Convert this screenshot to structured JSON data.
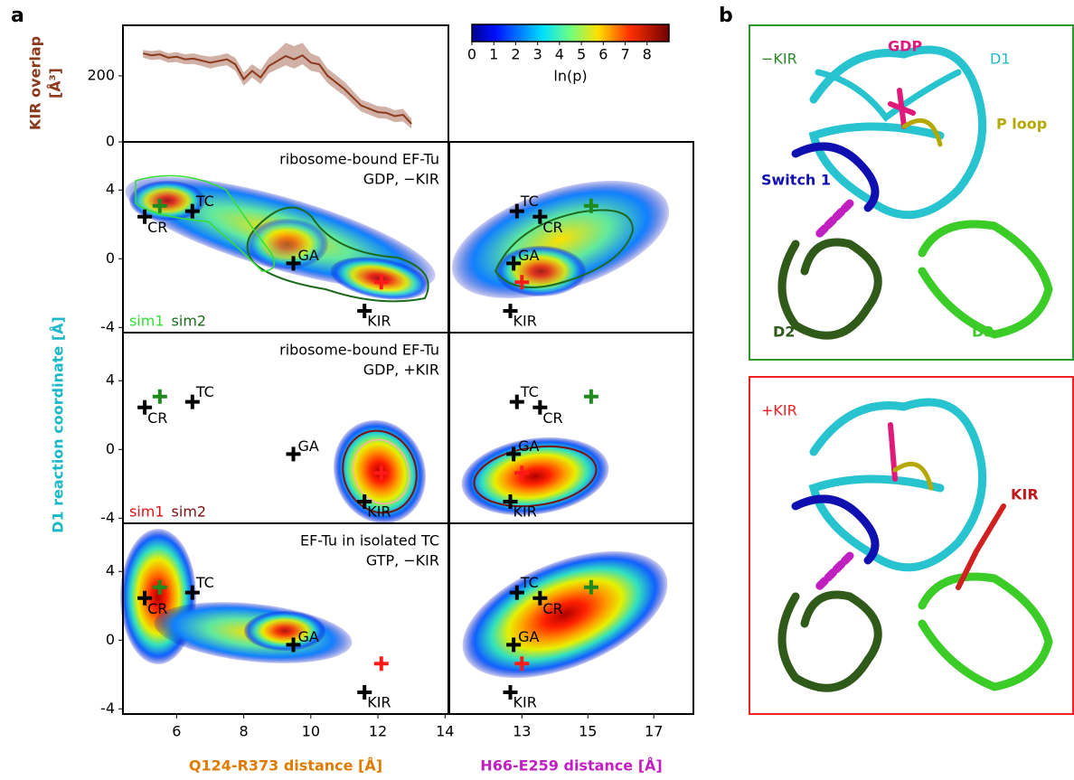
{
  "panel_labels": [
    "a",
    "b"
  ],
  "chart_data": [
    {
      "type": "line",
      "ylabel": [
        "KIR overlap",
        "[Å³]"
      ],
      "label_color": "#8b3a1e",
      "x": [
        5,
        5.25,
        5.5,
        5.75,
        6,
        6.25,
        6.5,
        6.75,
        7,
        7.25,
        7.5,
        7.75,
        8,
        8.25,
        8.5,
        8.75,
        9,
        9.25,
        9.5,
        9.75,
        10,
        10.25,
        10.5,
        10.75,
        11,
        11.25,
        11.5,
        11.75,
        12,
        12.25,
        12.5,
        12.75,
        13
      ],
      "series": [
        {
          "color": "#8b3a1e",
          "values": [
            268,
            262,
            265,
            255,
            258,
            250,
            252,
            246,
            240,
            245,
            250,
            235,
            190,
            215,
            195,
            230,
            245,
            260,
            250,
            262,
            240,
            235,
            200,
            180,
            160,
            135,
            110,
            100,
            90,
            88,
            78,
            82,
            55
          ],
          "lower": [
            255,
            248,
            250,
            240,
            242,
            235,
            236,
            230,
            222,
            228,
            232,
            215,
            170,
            195,
            175,
            208,
            220,
            232,
            222,
            235,
            215,
            210,
            178,
            158,
            140,
            115,
            92,
            82,
            72,
            70,
            60,
            62,
            40
          ],
          "upper": [
            278,
            275,
            278,
            268,
            272,
            265,
            268,
            262,
            258,
            262,
            268,
            255,
            210,
            235,
            218,
            255,
            275,
            300,
            290,
            300,
            268,
            258,
            222,
            202,
            182,
            155,
            128,
            118,
            108,
            106,
            96,
            100,
            70
          ]
        }
      ],
      "xlim": [
        4.4,
        14.1
      ],
      "ylim": [
        0,
        353
      ],
      "yticks": [
        0,
        200
      ]
    },
    {
      "type": "colorbar",
      "label": "ln(p)",
      "lim": [
        0,
        9
      ],
      "ticks": [
        0,
        1,
        2,
        3,
        4,
        5,
        6,
        7,
        8
      ]
    },
    {
      "type": "scatter-grid",
      "ylabel": "D1 reaction coordinate [Å]",
      "ylabel_color": "#1cb8c8",
      "ylim": [
        -4.3,
        6.8
      ],
      "yticks": [
        -4,
        0,
        4
      ],
      "columns": [
        {
          "xlabel": "Q124-R373 distance [Å]",
          "xlabel_color": "#e07b00",
          "xlim": [
            4.4,
            14.1
          ],
          "xticks": [
            6,
            8,
            10,
            12,
            14
          ]
        },
        {
          "xlabel": "H66-E259 distance [Å]",
          "xlabel_color": "#c21fc2",
          "xlim": [
            10.8,
            18.2
          ],
          "xticks": [
            13,
            15,
            17
          ]
        }
      ],
      "rows": [
        {
          "title": [
            "ribosome-bound EF-Tu",
            "GDP, −KIR"
          ],
          "legend": [
            {
              "name": "sim1",
              "color": "#33e033"
            },
            {
              "name": "sim2",
              "color": "#1d6b1d"
            }
          ]
        },
        {
          "title": [
            "ribosome-bound EF-Tu",
            "GDP, +KIR"
          ],
          "legend": [
            {
              "name": "sim1",
              "color": "#e8101a"
            },
            {
              "name": "sim2",
              "color": "#7a1010"
            }
          ]
        },
        {
          "title": [
            "EF-Tu in isolated TC",
            "GTP, −KIR"
          ],
          "legend": []
        }
      ],
      "markers": [
        {
          "label": "CR",
          "color": "#000000",
          "x": [
            5.05,
            13.55
          ],
          "y": 2.45
        },
        {
          "color": "#1e8a1e",
          "x": [
            5.5,
            15.1
          ],
          "y": 3.08
        },
        {
          "label": "TC",
          "color": "#000000",
          "x": [
            6.47,
            12.85
          ],
          "y": 2.77
        },
        {
          "label": "GA",
          "color": "#000000",
          "x": [
            9.48,
            12.75
          ],
          "y": -0.27
        },
        {
          "color": "#ff1a1a",
          "x": [
            12.1,
            13.0
          ],
          "y": -1.37
        },
        {
          "label": "KIR",
          "color": "#000000",
          "x": [
            11.6,
            12.65
          ],
          "y": -3.04
        }
      ]
    }
  ],
  "structure_panels": [
    {
      "title": "−KIR",
      "labels": [
        "GDP",
        "D1",
        "P loop",
        "Switch 1",
        "D2",
        "D3"
      ]
    },
    {
      "title": "+KIR",
      "labels": [
        "KIR"
      ]
    }
  ]
}
